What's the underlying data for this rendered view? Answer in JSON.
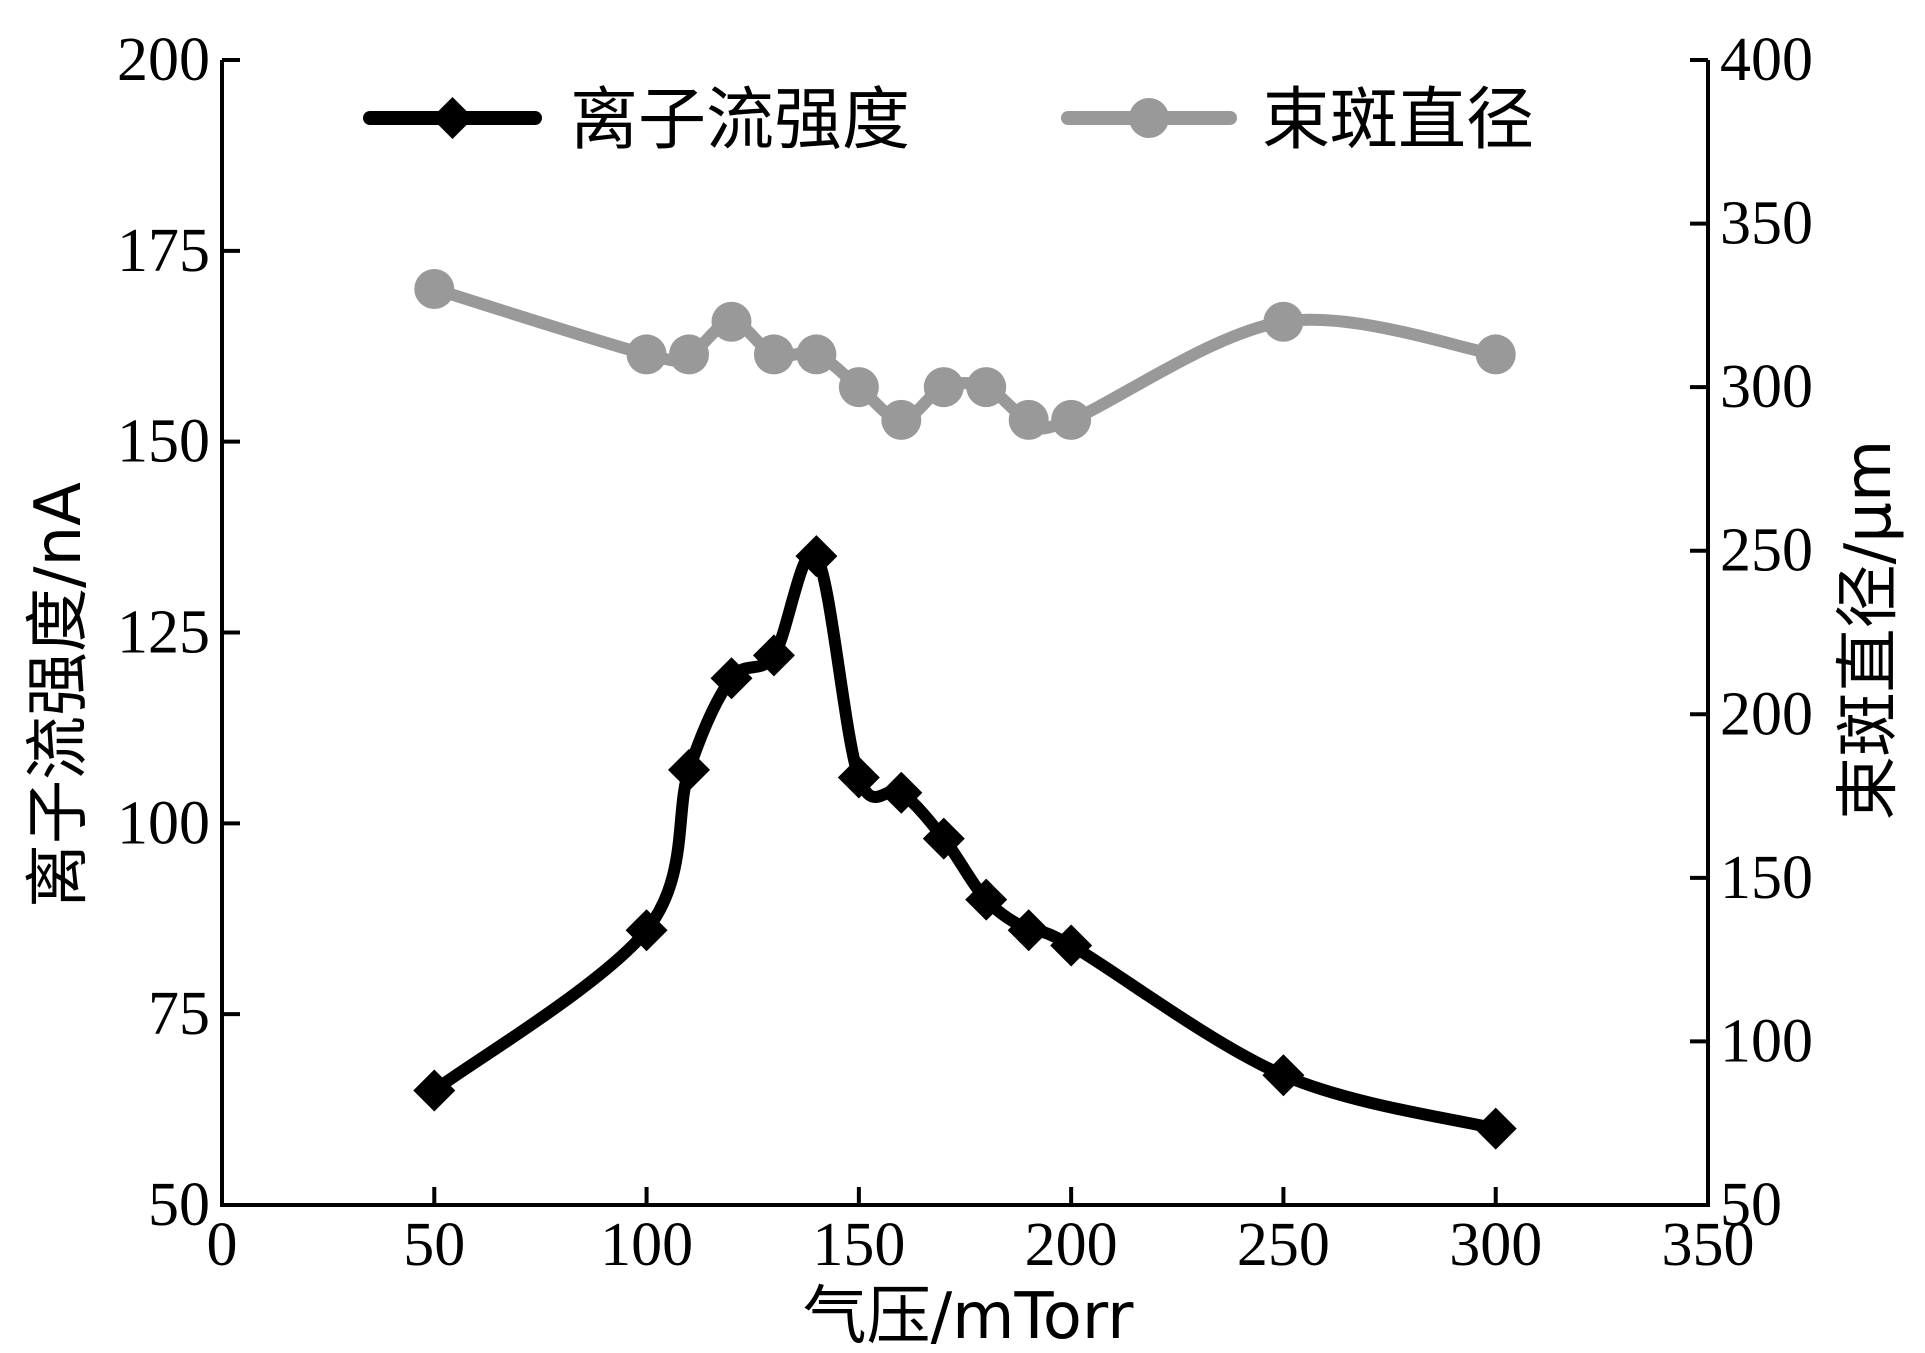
{
  "chart_data": {
    "type": "line",
    "xlabel": "气压/mTorr",
    "ylabel_left": "离子流强度/nA",
    "ylabel_right": "束斑直径/μm",
    "xlim": [
      0,
      350
    ],
    "ylim_left": [
      50,
      200
    ],
    "ylim_right": [
      50,
      400
    ],
    "x_ticks": [
      "0",
      "50",
      "100",
      "150",
      "200",
      "250",
      "300",
      "350"
    ],
    "y_left_ticks": [
      "50",
      "75",
      "100",
      "125",
      "150",
      "175",
      "200"
    ],
    "y_right_ticks": [
      "50",
      "100",
      "150",
      "200",
      "250",
      "300",
      "350",
      "400"
    ],
    "legend_position": "top",
    "grid": false,
    "series": [
      {
        "name": "离子流强度",
        "axis": "left",
        "color": "#000000",
        "marker": "diamond",
        "x": [
          50,
          100,
          110,
          120,
          130,
          140,
          150,
          160,
          170,
          180,
          190,
          200,
          250,
          300
        ],
        "y": [
          65,
          86,
          107,
          119,
          122,
          135,
          106,
          104,
          98,
          90,
          86,
          84,
          67,
          60
        ]
      },
      {
        "name": "束斑直径",
        "axis": "right",
        "color": "#999999",
        "marker": "circle",
        "x": [
          50,
          100,
          110,
          120,
          130,
          140,
          150,
          160,
          170,
          180,
          190,
          200,
          250,
          300
        ],
        "y": [
          330,
          310,
          310,
          320,
          310,
          310,
          300,
          290,
          300,
          300,
          290,
          290,
          320,
          310
        ]
      }
    ]
  }
}
